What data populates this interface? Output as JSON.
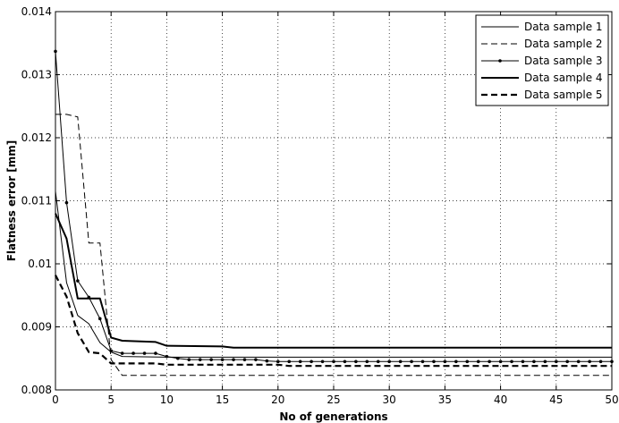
{
  "chart_data": {
    "type": "line",
    "title": "",
    "xlabel": "No of generations",
    "ylabel": "Flatness error [mm]",
    "xlim": [
      0,
      50
    ],
    "ylim": [
      0.008,
      0.014
    ],
    "grid": true,
    "legend_position": "top-right",
    "x_ticks": [
      0,
      5,
      10,
      15,
      20,
      25,
      30,
      35,
      40,
      45,
      50
    ],
    "y_ticks": [
      0.008,
      0.009,
      0.01,
      0.011,
      0.012,
      0.013,
      0.014
    ],
    "x_tick_labels": [
      "0",
      "5",
      "10",
      "15",
      "20",
      "25",
      "30",
      "35",
      "40",
      "45",
      "50"
    ],
    "y_tick_labels": [
      "0.008",
      "0.009",
      "0.01",
      "0.011",
      "0.012",
      "0.013",
      "0.014"
    ],
    "series": [
      {
        "name": "Data sample 1",
        "style": "thin-solid",
        "points": [
          [
            0,
            0.01115
          ],
          [
            1,
            0.0097
          ],
          [
            2,
            0.00918
          ],
          [
            3,
            0.00905
          ],
          [
            4,
            0.00875
          ],
          [
            5,
            0.0086
          ],
          [
            6,
            0.00853
          ],
          [
            10,
            0.00852
          ],
          [
            11,
            0.00852
          ],
          [
            50,
            0.00852
          ]
        ]
      },
      {
        "name": "Data sample 2",
        "style": "thin-dashed",
        "points": [
          [
            0,
            0.01237
          ],
          [
            1,
            0.01237
          ],
          [
            2,
            0.01233
          ],
          [
            3,
            0.01033
          ],
          [
            4,
            0.01033
          ],
          [
            5,
            0.00848
          ],
          [
            6,
            0.00823
          ],
          [
            50,
            0.00823
          ]
        ]
      },
      {
        "name": "Data sample 3",
        "style": "solid-with-dots",
        "points": [
          [
            0,
            0.01337
          ],
          [
            1,
            0.01097
          ],
          [
            2,
            0.00973
          ],
          [
            3,
            0.00947
          ],
          [
            4,
            0.00913
          ],
          [
            5,
            0.00862
          ],
          [
            6,
            0.00858
          ],
          [
            7,
            0.00858
          ],
          [
            8,
            0.00858
          ],
          [
            9,
            0.00858
          ],
          [
            10,
            0.00853
          ],
          [
            11,
            0.0085
          ],
          [
            12,
            0.00848
          ],
          [
            13,
            0.00848
          ],
          [
            14,
            0.00848
          ],
          [
            15,
            0.00848
          ],
          [
            16,
            0.00848
          ],
          [
            17,
            0.00848
          ],
          [
            18,
            0.00848
          ],
          [
            19,
            0.00846
          ],
          [
            20,
            0.00845
          ],
          [
            21,
            0.00845
          ],
          [
            22,
            0.00845
          ],
          [
            23,
            0.00845
          ],
          [
            24,
            0.00845
          ],
          [
            25,
            0.00845
          ],
          [
            26,
            0.00845
          ],
          [
            27,
            0.00845
          ],
          [
            28,
            0.00845
          ],
          [
            29,
            0.00845
          ],
          [
            30,
            0.00845
          ],
          [
            31,
            0.00845
          ],
          [
            32,
            0.00845
          ],
          [
            33,
            0.00845
          ],
          [
            34,
            0.00845
          ],
          [
            35,
            0.00845
          ],
          [
            36,
            0.00845
          ],
          [
            37,
            0.00845
          ],
          [
            38,
            0.00845
          ],
          [
            39,
            0.00845
          ],
          [
            40,
            0.00845
          ],
          [
            41,
            0.00845
          ],
          [
            42,
            0.00845
          ],
          [
            43,
            0.00845
          ],
          [
            44,
            0.00845
          ],
          [
            45,
            0.00845
          ],
          [
            46,
            0.00845
          ],
          [
            47,
            0.00845
          ],
          [
            48,
            0.00845
          ],
          [
            49,
            0.00845
          ],
          [
            50,
            0.00845
          ]
        ]
      },
      {
        "name": "Data sample 4",
        "style": "thick-solid",
        "points": [
          [
            0,
            0.0108
          ],
          [
            1,
            0.0104
          ],
          [
            2,
            0.00945
          ],
          [
            3,
            0.00945
          ],
          [
            4,
            0.00945
          ],
          [
            5,
            0.00883
          ],
          [
            6,
            0.00878
          ],
          [
            9,
            0.00876
          ],
          [
            10,
            0.0087
          ],
          [
            15,
            0.00869
          ],
          [
            16,
            0.00867
          ],
          [
            50,
            0.00867
          ]
        ]
      },
      {
        "name": "Data sample 5",
        "style": "thick-dashed",
        "points": [
          [
            0,
            0.00982
          ],
          [
            1,
            0.00948
          ],
          [
            2,
            0.0089
          ],
          [
            3,
            0.0086
          ],
          [
            4,
            0.00858
          ],
          [
            5,
            0.00842
          ],
          [
            9,
            0.00842
          ],
          [
            10,
            0.0084
          ],
          [
            20,
            0.0084
          ],
          [
            21,
            0.00838
          ],
          [
            50,
            0.00838
          ]
        ]
      }
    ]
  }
}
